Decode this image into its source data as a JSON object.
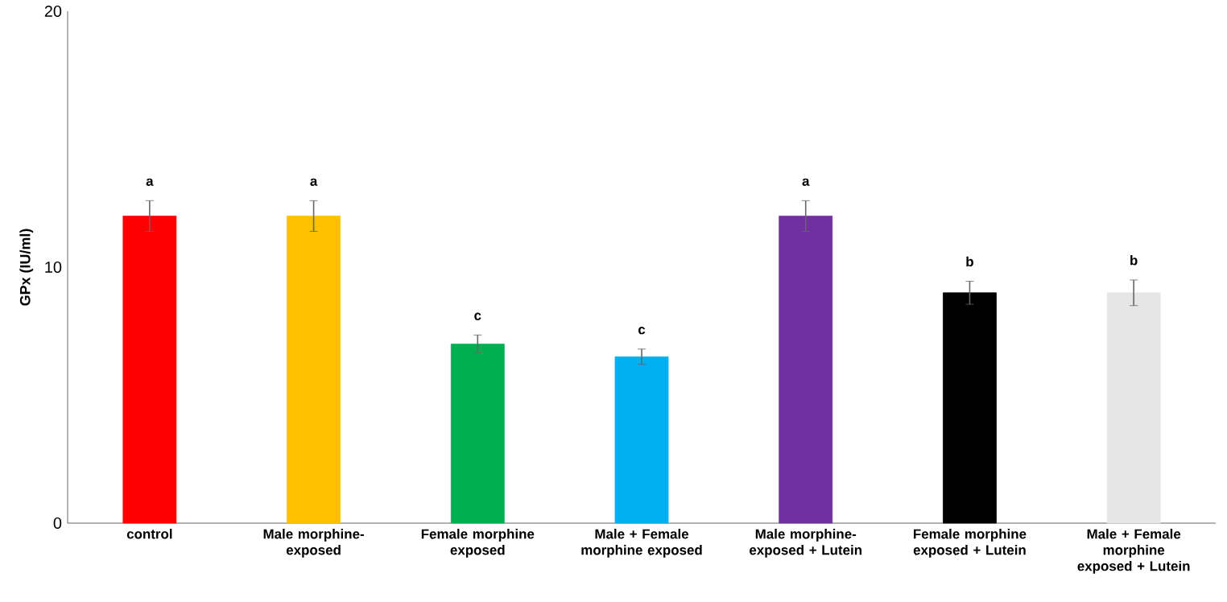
{
  "chart_data": {
    "type": "bar",
    "ylabel": "GPx (IU/ml)",
    "categories": [
      "control",
      "Male morphine-exposed",
      "Female morphine exposed",
      "Male + Female morphine exposed",
      "Male morphine-exposed + Lutein",
      "Female morphine exposed + Lutein",
      "Male + Female morphine exposed + Lutein"
    ],
    "values": [
      12,
      12,
      7,
      6.5,
      12,
      9,
      9
    ],
    "errors": [
      0.6,
      0.6,
      0.35,
      0.3,
      0.6,
      0.45,
      0.5
    ],
    "colors": [
      "#ff0000",
      "#ffc000",
      "#00b050",
      "#00b0f0",
      "#7030a0",
      "#000000",
      "#e7e6e6"
    ],
    "ylim": [
      0,
      20
    ],
    "yticks": [
      0,
      10,
      20
    ],
    "grid": false,
    "annotations": [
      "a",
      "a",
      "c",
      "c",
      "a",
      "b",
      "b"
    ]
  }
}
